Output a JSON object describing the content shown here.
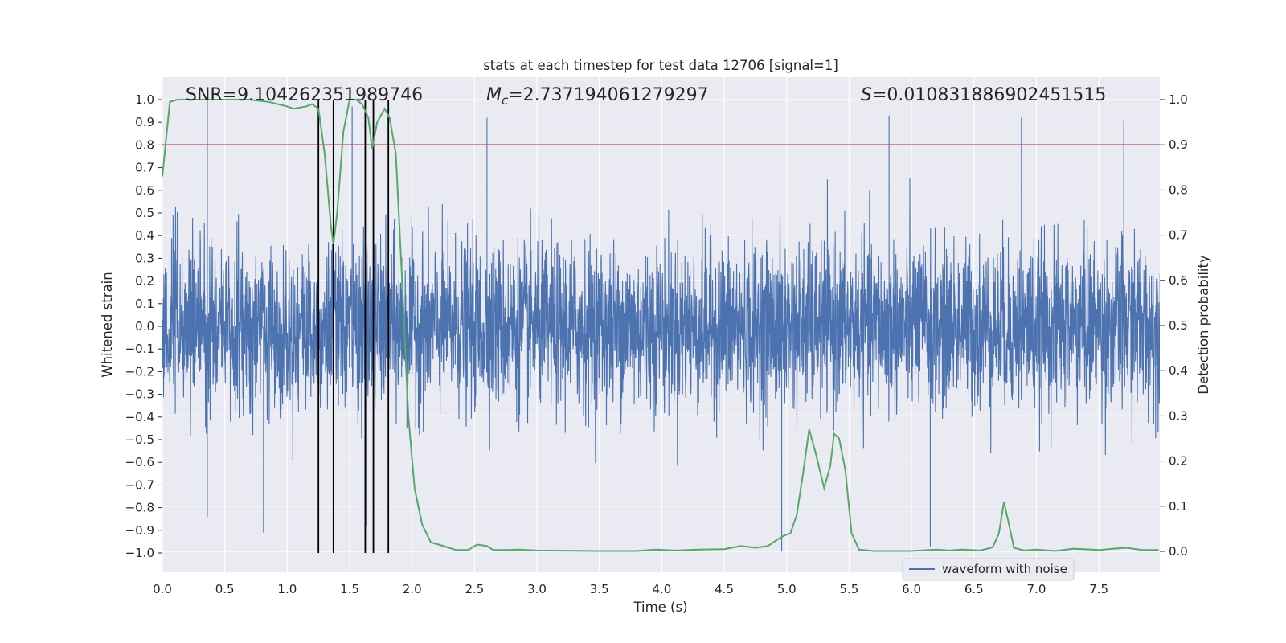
{
  "chart_data": {
    "type": "line",
    "title": "stats at each timestep for test data 12706 [signal=1]",
    "xlabel": "Time (s)",
    "ylabel": "Whitened strain",
    "y2label": "Detection probability",
    "xlim": [
      0.0,
      8.0
    ],
    "ylim": [
      -1.09,
      1.09
    ],
    "y2lim": [
      -0.0477,
      1.0477
    ],
    "x_ticks": [
      "0.0",
      "0.5",
      "1.0",
      "1.5",
      "2.0",
      "2.5",
      "3.0",
      "3.5",
      "4.0",
      "4.5",
      "5.0",
      "5.5",
      "6.0",
      "6.5",
      "7.0",
      "7.5"
    ],
    "y_ticks": [
      "1.0",
      "0.9",
      "0.8",
      "0.7",
      "0.6",
      "0.5",
      "0.4",
      "0.3",
      "0.2",
      "0.1",
      "0.0",
      "−0.1",
      "−0.2",
      "−0.3",
      "−0.4",
      "−0.5",
      "−0.6",
      "−0.7",
      "−0.8",
      "−0.9",
      "−1.0"
    ],
    "y2_ticks": [
      "1.0",
      "0.9",
      "0.8",
      "0.7",
      "0.6",
      "0.5",
      "0.4",
      "0.3",
      "0.2",
      "0.1",
      "0.0"
    ],
    "grid": true,
    "legend_placement": "lower-right",
    "series": [
      {
        "name": "waveform with noise",
        "axis": "left",
        "color": "#4c72b0",
        "envelope_typical": 0.4,
        "notable_peaks": [
          {
            "x": 0.36,
            "y": 1.0
          },
          {
            "x": 0.36,
            "y": -0.84
          },
          {
            "x": 0.81,
            "y": -0.91
          },
          {
            "x": 1.37,
            "y": -0.84
          },
          {
            "x": 1.52,
            "y": 0.97
          },
          {
            "x": 1.63,
            "y": -0.88
          },
          {
            "x": 2.6,
            "y": 0.92
          },
          {
            "x": 4.96,
            "y": -0.99
          },
          {
            "x": 5.82,
            "y": 0.93
          },
          {
            "x": 6.15,
            "y": -0.97
          },
          {
            "x": 6.88,
            "y": 0.92
          },
          {
            "x": 7.7,
            "y": 0.91
          }
        ]
      },
      {
        "name": "",
        "axis": "right",
        "color": "#55a868",
        "points": [
          [
            0.0,
            0.83
          ],
          [
            0.06,
            0.995
          ],
          [
            0.12,
            1.0
          ],
          [
            0.3,
            1.0
          ],
          [
            0.5,
            1.0
          ],
          [
            0.7,
            1.0
          ],
          [
            0.85,
            0.995
          ],
          [
            1.0,
            0.985
          ],
          [
            1.05,
            0.98
          ],
          [
            1.15,
            0.985
          ],
          [
            1.2,
            0.99
          ],
          [
            1.25,
            0.98
          ],
          [
            1.3,
            0.88
          ],
          [
            1.35,
            0.72
          ],
          [
            1.37,
            0.68
          ],
          [
            1.4,
            0.75
          ],
          [
            1.45,
            0.93
          ],
          [
            1.5,
            1.0
          ],
          [
            1.55,
            1.0
          ],
          [
            1.6,
            0.99
          ],
          [
            1.65,
            0.96
          ],
          [
            1.68,
            0.89
          ],
          [
            1.72,
            0.95
          ],
          [
            1.78,
            0.98
          ],
          [
            1.82,
            0.96
          ],
          [
            1.87,
            0.88
          ],
          [
            1.92,
            0.6
          ],
          [
            1.97,
            0.3
          ],
          [
            2.02,
            0.14
          ],
          [
            2.08,
            0.06
          ],
          [
            2.15,
            0.02
          ],
          [
            2.25,
            0.012
          ],
          [
            2.35,
            0.003
          ],
          [
            2.45,
            0.003
          ],
          [
            2.52,
            0.015
          ],
          [
            2.6,
            0.012
          ],
          [
            2.65,
            0.003
          ],
          [
            2.75,
            0.003
          ],
          [
            2.85,
            0.004
          ],
          [
            3.0,
            0.002
          ],
          [
            3.5,
            0.001
          ],
          [
            3.8,
            0.001
          ],
          [
            3.95,
            0.004
          ],
          [
            4.1,
            0.002
          ],
          [
            4.3,
            0.004
          ],
          [
            4.5,
            0.005
          ],
          [
            4.63,
            0.012
          ],
          [
            4.75,
            0.008
          ],
          [
            4.85,
            0.012
          ],
          [
            4.92,
            0.025
          ],
          [
            4.98,
            0.035
          ],
          [
            5.03,
            0.04
          ],
          [
            5.08,
            0.08
          ],
          [
            5.13,
            0.17
          ],
          [
            5.18,
            0.27
          ],
          [
            5.23,
            0.22
          ],
          [
            5.3,
            0.14
          ],
          [
            5.35,
            0.19
          ],
          [
            5.38,
            0.26
          ],
          [
            5.42,
            0.25
          ],
          [
            5.47,
            0.18
          ],
          [
            5.52,
            0.04
          ],
          [
            5.58,
            0.004
          ],
          [
            5.7,
            0.001
          ],
          [
            6.0,
            0.001
          ],
          [
            6.2,
            0.004
          ],
          [
            6.3,
            0.002
          ],
          [
            6.4,
            0.004
          ],
          [
            6.55,
            0.002
          ],
          [
            6.65,
            0.009
          ],
          [
            6.7,
            0.04
          ],
          [
            6.74,
            0.11
          ],
          [
            6.78,
            0.06
          ],
          [
            6.82,
            0.008
          ],
          [
            6.9,
            0.002
          ],
          [
            7.0,
            0.004
          ],
          [
            7.15,
            0.001
          ],
          [
            7.3,
            0.006
          ],
          [
            7.5,
            0.003
          ],
          [
            7.62,
            0.006
          ],
          [
            7.72,
            0.008
          ],
          [
            7.85,
            0.003
          ],
          [
            7.98,
            0.003
          ]
        ]
      }
    ],
    "threshold": {
      "axis": "right",
      "y": 0.9,
      "color": "#c44e52"
    },
    "vertical_markers": [
      1.25,
      1.37,
      1.625,
      1.69,
      1.81
    ],
    "vertical_marker_range": [
      -1.0,
      1.0
    ],
    "annotations": {
      "snr": "SNR=9.104262351989746",
      "mc_symbol": "M",
      "mc_subscript": "c",
      "mc_value": "=2.737194061279297",
      "s_symbol": "S",
      "s_value": "=0.010831886902451515"
    }
  }
}
